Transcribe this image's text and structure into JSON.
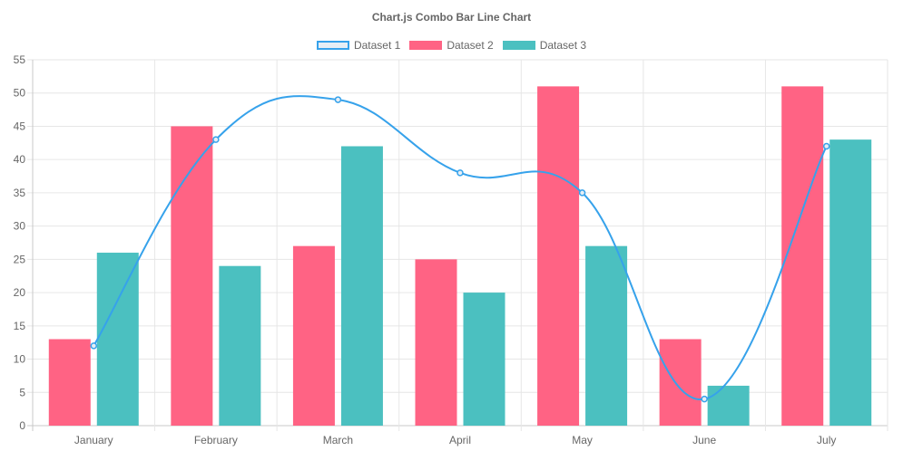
{
  "chart_data": {
    "type": "bar",
    "title": "Chart.js Combo Bar Line Chart",
    "categories": [
      "January",
      "February",
      "March",
      "April",
      "May",
      "June",
      "July"
    ],
    "series": [
      {
        "name": "Dataset 1",
        "type": "line",
        "values": [
          12,
          43,
          49,
          38,
          35,
          4,
          42
        ],
        "color": "#36a2eb",
        "fill": "#e6eef5"
      },
      {
        "name": "Dataset 2",
        "type": "bar",
        "values": [
          13,
          45,
          27,
          25,
          51,
          13,
          51
        ],
        "color": "#ff6384"
      },
      {
        "name": "Dataset 3",
        "type": "bar",
        "values": [
          26,
          24,
          42,
          20,
          27,
          6,
          43
        ],
        "color": "#4bc0c0"
      }
    ],
    "ylim": [
      0,
      55
    ],
    "yticks": [
      "0",
      "5",
      "10",
      "15",
      "20",
      "25",
      "30",
      "35",
      "40",
      "45",
      "50",
      "55"
    ],
    "grid": true,
    "legend_position": "top"
  }
}
